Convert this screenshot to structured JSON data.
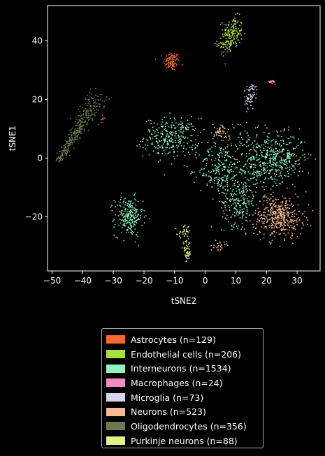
{
  "chart_data": {
    "type": "scatter",
    "title": "",
    "xlabel": "tSNE2",
    "ylabel": "tSNE1",
    "xlim": [
      -51.5,
      37.5
    ],
    "ylim": [
      -38.5,
      52
    ],
    "xticks": [
      -50,
      -40,
      -30,
      -20,
      -10,
      0,
      10,
      20,
      30
    ],
    "yticks": [
      -20,
      0,
      20,
      40
    ],
    "xtick_labels": [
      "−50",
      "−40",
      "−30",
      "−20",
      "−10",
      "0",
      "10",
      "20",
      "30"
    ],
    "ytick_labels": [
      "−20",
      "0",
      "20",
      "40"
    ],
    "grid": false,
    "legend_position": "below",
    "series": [
      {
        "name": "Astrocytes (n=129)",
        "color": "#f26a2e",
        "n": 129,
        "clusters": [
          {
            "cx": -11,
            "cy": 33,
            "sx": 1.3,
            "sy": 1.6,
            "n": 110
          },
          {
            "cx": -33.5,
            "cy": 13.5,
            "sx": 0.3,
            "sy": 0.8,
            "n": 8
          },
          {
            "cx": 6,
            "cy": 6,
            "sx": 2.0,
            "sy": 4.0,
            "n": 11
          }
        ]
      },
      {
        "name": "Endothelial cells (n=206)",
        "color": "#a8e03c",
        "n": 206,
        "clusters": [
          {
            "cx": 9,
            "cy": 43,
            "sx": 1.6,
            "sy": 2.6,
            "n": 140
          },
          {
            "cx": 7,
            "cy": 39,
            "sx": 1.5,
            "sy": 1.8,
            "n": 66
          }
        ]
      },
      {
        "name": "Interneurons (n=1534)",
        "color": "#8ef3c0",
        "n": 1534,
        "clusters": [
          {
            "cx": -11,
            "cy": 7,
            "sx": 4.5,
            "sy": 3.3,
            "n": 300
          },
          {
            "cx": -25,
            "cy": -20,
            "sx": 2.3,
            "sy": 3.3,
            "n": 240
          },
          {
            "cx": 5,
            "cy": -4,
            "sx": 3.5,
            "sy": 4.5,
            "n": 230
          },
          {
            "cx": 11,
            "cy": -15,
            "sx": 2.8,
            "sy": 4.0,
            "n": 200
          },
          {
            "cx": 25,
            "cy": 0,
            "sx": 3.8,
            "sy": 4.0,
            "n": 280
          },
          {
            "cx": 17,
            "cy": -2,
            "sx": 3.5,
            "sy": 4.5,
            "n": 230
          },
          {
            "cx": 14,
            "cy": 6,
            "sx": 6.0,
            "sy": 4.0,
            "n": 54
          }
        ]
      },
      {
        "name": "Macrophages (n=24)",
        "color": "#f28bc1",
        "n": 24,
        "clusters": [
          {
            "cx": 22,
            "cy": 26,
            "sx": 0.6,
            "sy": 0.3,
            "n": 24
          }
        ]
      },
      {
        "name": "Microglia (n=73)",
        "color": "#d8d5ee",
        "n": 73,
        "clusters": [
          {
            "cx": 14.5,
            "cy": 20,
            "sx": 0.8,
            "sy": 1.6,
            "n": 50
          },
          {
            "cx": 15.5,
            "cy": 24,
            "sx": 0.8,
            "sy": 0.6,
            "n": 23
          }
        ]
      },
      {
        "name": "Neurons (n=523)",
        "color": "#f7ba8e",
        "n": 523,
        "clusters": [
          {
            "cx": 24,
            "cy": -20,
            "sx": 4.0,
            "sy": 3.5,
            "n": 440
          },
          {
            "cx": 5,
            "cy": 9,
            "sx": 1.1,
            "sy": 1.2,
            "n": 45
          },
          {
            "cx": 5,
            "cy": -30,
            "sx": 1.0,
            "sy": 0.8,
            "n": 26
          },
          {
            "cx": 10,
            "cy": 0,
            "sx": 6.0,
            "sy": 6.0,
            "n": 12
          }
        ]
      },
      {
        "name": "Oligodendrocytes (n=356)",
        "color": "#6b7a4f",
        "n": 356,
        "clusters": [
          {
            "type": "line",
            "x0": -48,
            "y0": -1,
            "x1": -35,
            "y1": 21,
            "sx": 1.3,
            "sy": 1.3,
            "n": 356
          }
        ]
      },
      {
        "name": "Purkinje neurons (n=88)",
        "color": "#e3f08b",
        "n": 88,
        "clusters": [
          {
            "cx": -6,
            "cy": -32,
            "sx": 0.7,
            "sy": 1.8,
            "n": 55
          },
          {
            "cx": -7,
            "cy": -25,
            "sx": 1.0,
            "sy": 1.0,
            "n": 33
          }
        ]
      }
    ]
  }
}
